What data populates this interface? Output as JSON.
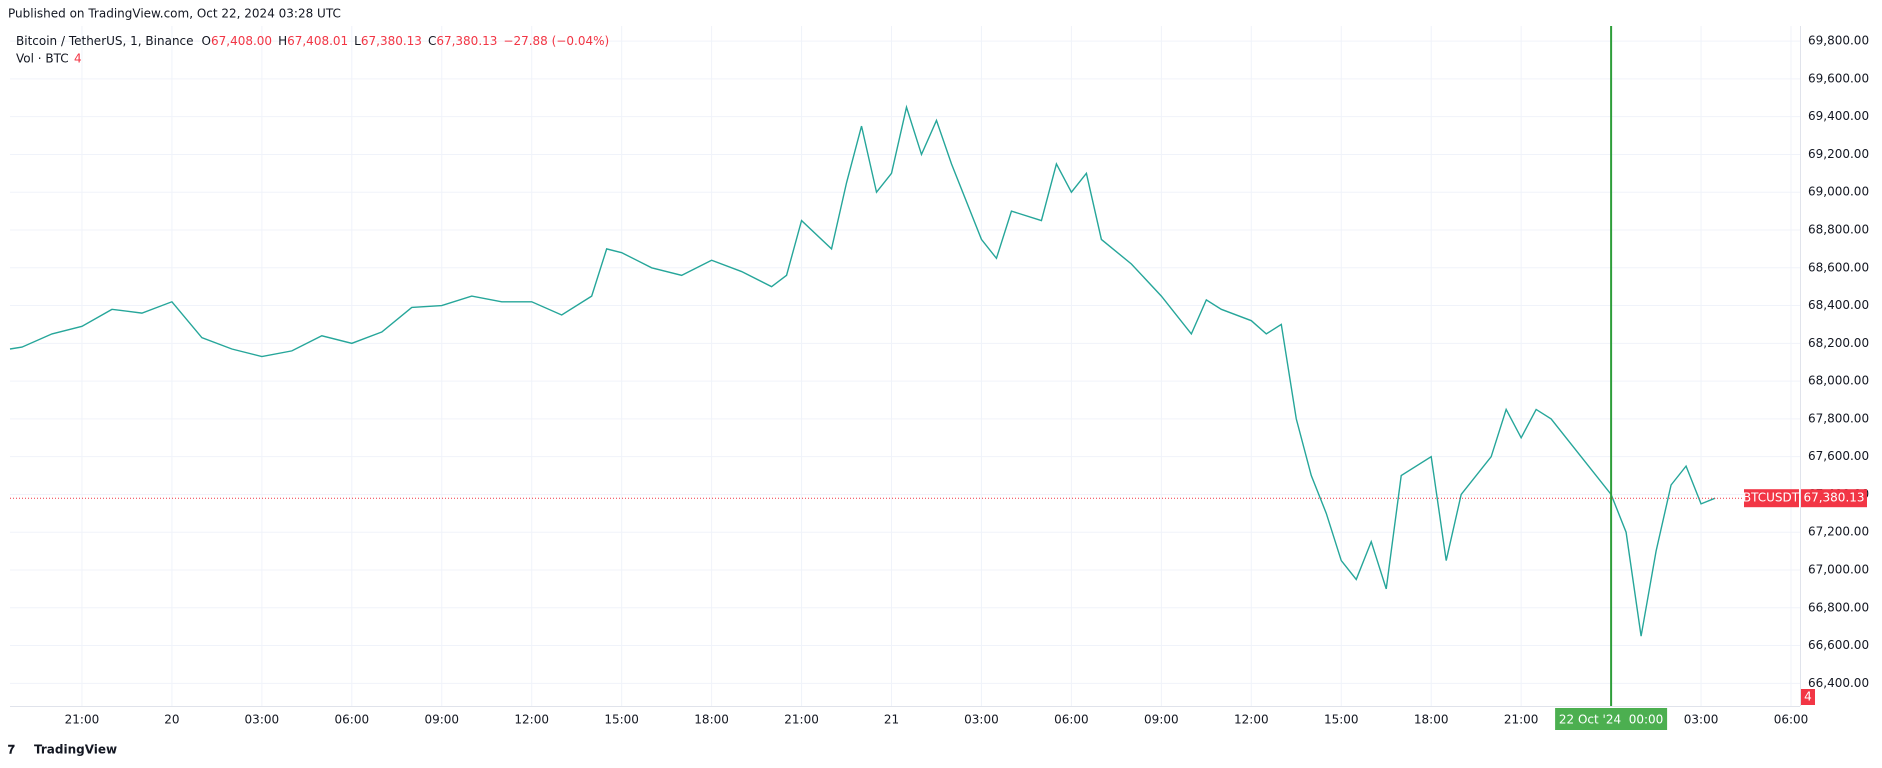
{
  "header": "Published on TradingView.com, Oct 22, 2024 03:28 UTC",
  "footer": "TradingView",
  "chart_data": {
    "type": "line",
    "title": "Bitcoin / TetherUS, 1, Binance",
    "ohlc": [
      {
        "key": "O",
        "label": "67,408.00"
      },
      {
        "key": "H",
        "label": "67,408.01"
      },
      {
        "key": "L",
        "label": "67,380.13"
      },
      {
        "key": "C",
        "label": "67,380.13"
      }
    ],
    "change": "−27.88 (−0.04%)",
    "volume_legend": {
      "name": "Vol · BTC",
      "label": "4"
    },
    "series": [
      {
        "name": "BTCUSDT",
        "color": "#26a69a",
        "x": [
          18.6,
          19,
          20,
          21,
          22,
          23,
          24,
          25,
          26,
          27,
          28,
          29,
          30,
          31,
          32,
          33,
          34,
          35,
          36,
          37,
          38,
          38.5,
          39,
          40,
          41,
          42,
          43,
          44,
          44.5,
          45,
          46,
          46.5,
          47,
          47.5,
          48,
          48.5,
          49,
          49.5,
          50,
          51,
          51.5,
          52,
          53,
          53.5,
          54,
          54.5,
          55,
          56,
          57,
          58,
          58.5,
          59,
          60,
          60.5,
          61,
          61.5,
          62,
          62.5,
          63,
          63.5,
          64,
          64.5,
          65,
          66,
          66.5,
          67,
          68,
          68.5,
          69,
          69.5,
          70,
          71,
          72,
          72.5,
          73,
          73.5,
          74,
          74.5,
          75,
          75.47
        ],
        "values": [
          68170,
          68180,
          68250,
          68290,
          68380,
          68360,
          68420,
          68230,
          68170,
          68130,
          68160,
          68240,
          68200,
          68260,
          68390,
          68400,
          68450,
          68420,
          68420,
          68350,
          68450,
          68700,
          68680,
          68600,
          68560,
          68640,
          68580,
          68500,
          68560,
          68850,
          68700,
          69050,
          69350,
          69000,
          69100,
          69450,
          69200,
          69380,
          69150,
          68750,
          68650,
          68900,
          68850,
          69150,
          69000,
          69100,
          68750,
          68620,
          68450,
          68250,
          68430,
          68380,
          68320,
          68250,
          68300,
          67800,
          67500,
          67300,
          67050,
          66950,
          67150,
          66900,
          67500,
          67600,
          67050,
          67400,
          67600,
          67850,
          67700,
          67850,
          67800,
          67600,
          67400,
          67200,
          66650,
          67100,
          67450,
          67550,
          67350,
          67380.13
        ]
      }
    ],
    "last_price": {
      "value": 67380.13,
      "label": "67,380.13"
    },
    "crosshair": {
      "value": 72,
      "label": "22 Oct '24  00:00"
    },
    "xlim": [
      18.6,
      78.3
    ],
    "xticks": [
      {
        "value": 21,
        "label": "21:00"
      },
      {
        "value": 24,
        "label": "20"
      },
      {
        "value": 27,
        "label": "03:00"
      },
      {
        "value": 30,
        "label": "06:00"
      },
      {
        "value": 33,
        "label": "09:00"
      },
      {
        "value": 36,
        "label": "12:00"
      },
      {
        "value": 39,
        "label": "15:00"
      },
      {
        "value": 42,
        "label": "18:00"
      },
      {
        "value": 45,
        "label": "21:00"
      },
      {
        "value": 48,
        "label": "21"
      },
      {
        "value": 51,
        "label": "03:00"
      },
      {
        "value": 54,
        "label": "06:00"
      },
      {
        "value": 57,
        "label": "09:00"
      },
      {
        "value": 60,
        "label": "12:00"
      },
      {
        "value": 63,
        "label": "15:00"
      },
      {
        "value": 66,
        "label": "18:00"
      },
      {
        "value": 69,
        "label": "21:00"
      },
      {
        "value": 75,
        "label": "03:00"
      },
      {
        "value": 78,
        "label": "06:00"
      }
    ],
    "ylim": [
      66280,
      69880
    ],
    "yticks": [
      {
        "value": 66400,
        "label": "66,400.00"
      },
      {
        "value": 66600,
        "label": "66,600.00"
      },
      {
        "value": 66800,
        "label": "66,800.00"
      },
      {
        "value": 67000,
        "label": "67,000.00"
      },
      {
        "value": 67200,
        "label": "67,200.00"
      },
      {
        "value": 67400,
        "label": "67,400.00"
      },
      {
        "value": 67600,
        "label": "67,600.00"
      },
      {
        "value": 67800,
        "label": "67,800.00"
      },
      {
        "value": 68000,
        "label": "68,000.00"
      },
      {
        "value": 68200,
        "label": "68,200.00"
      },
      {
        "value": 68400,
        "label": "68,400.00"
      },
      {
        "value": 68600,
        "label": "68,600.00"
      },
      {
        "value": 68800,
        "label": "68,800.00"
      },
      {
        "value": 69000,
        "label": "69,000.00"
      },
      {
        "value": 69200,
        "label": "69,200.00"
      },
      {
        "value": 69400,
        "label": "69,400.00"
      },
      {
        "value": 69600,
        "label": "69,600.00"
      },
      {
        "value": 69800,
        "label": "69,800.00"
      }
    ],
    "grid": true
  }
}
